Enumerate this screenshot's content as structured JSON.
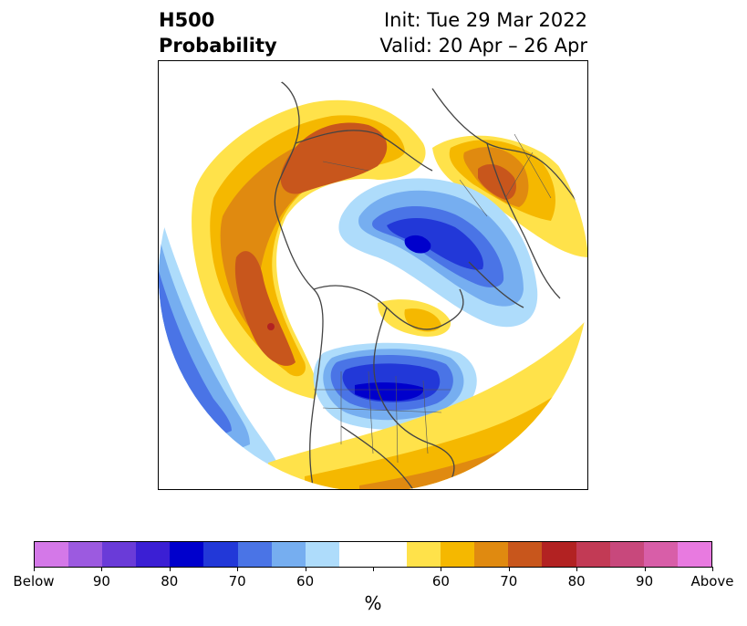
{
  "title": {
    "left_line1": "H500",
    "left_line2": "Probability",
    "right_line1": "Init: Tue 29 Mar 2022",
    "right_line2": "Valid: 20 Apr – 26 Apr"
  },
  "colorbar": {
    "colors": [
      "#d478e8",
      "#9c5ae0",
      "#6a3bd8",
      "#3b1fd4",
      "#0000cc",
      "#2238d8",
      "#4a74e6",
      "#76aef0",
      "#aedcfb",
      "#ffffff",
      "#ffffff",
      "#ffe24a",
      "#f5b800",
      "#e08a10",
      "#c8561c",
      "#b22222",
      "#c23a55",
      "#c8487c",
      "#d85ea8",
      "#e87ae0"
    ],
    "tick_labels": [
      "Below",
      "90",
      "80",
      "70",
      "60",
      "60",
      "70",
      "80",
      "90",
      "Above"
    ],
    "unit_label": "%"
  }
}
